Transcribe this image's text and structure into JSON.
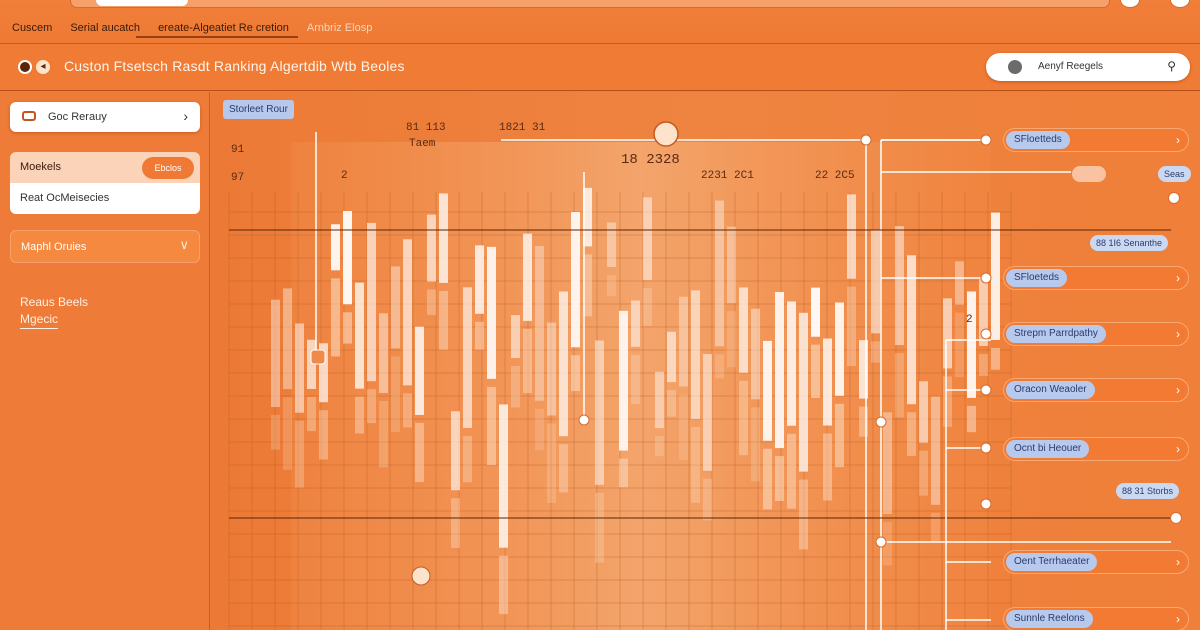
{
  "topbar": {
    "menu": [
      "Cuscem",
      "Serial aucatch",
      "ereate-Algeatiet Re cretion"
    ],
    "menu_dim": "Arnbriz Elosp"
  },
  "header": {
    "title": "Custon Ftsetsch Rasdt Ranking  Algertdib  Wtb Beoles",
    "user": "Aenyf Reegels"
  },
  "sidebar": {
    "button": "Goc Rerauy",
    "group": [
      {
        "label": "Moekels",
        "badge": "Ebclos"
      },
      {
        "label": "Reat OcMeisecies"
      }
    ],
    "accordion": "Maphl Oruies",
    "text": [
      "Reaus Beels",
      "Mgecic"
    ]
  },
  "main": {
    "label": "Storleet Rour",
    "ticks": [
      {
        "text": "81  113",
        "k": "t1"
      },
      {
        "text": "1821  31",
        "k": "t2"
      },
      {
        "text": "Taem",
        "k": "t3"
      },
      {
        "text": "18 2328",
        "k": "t4"
      },
      {
        "text": "2231  2C1",
        "k": "t5"
      },
      {
        "text": "22  2C5",
        "k": "t6"
      },
      {
        "text": "2",
        "k": "t7"
      },
      {
        "text": "91",
        "k": "t8"
      },
      {
        "text": "97",
        "k": "t9"
      },
      {
        "text": "31",
        "k": "t10"
      }
    ]
  },
  "right": {
    "pills": [
      "SFloetteds",
      "SFloeteds",
      "Strepm Parrdpathy",
      "Oracon Weaoler",
      "Ocnt bi Heouer",
      "Oent Terrhaeater",
      "Sunnle Reelons"
    ],
    "minis": [
      "Seas",
      "88  1I6 Senanthe",
      "88  31 Storbs"
    ]
  },
  "colors": {
    "accent": "#ee7d3c",
    "tag_blue": "#b7c9ed",
    "dark": "#3a1a08"
  }
}
